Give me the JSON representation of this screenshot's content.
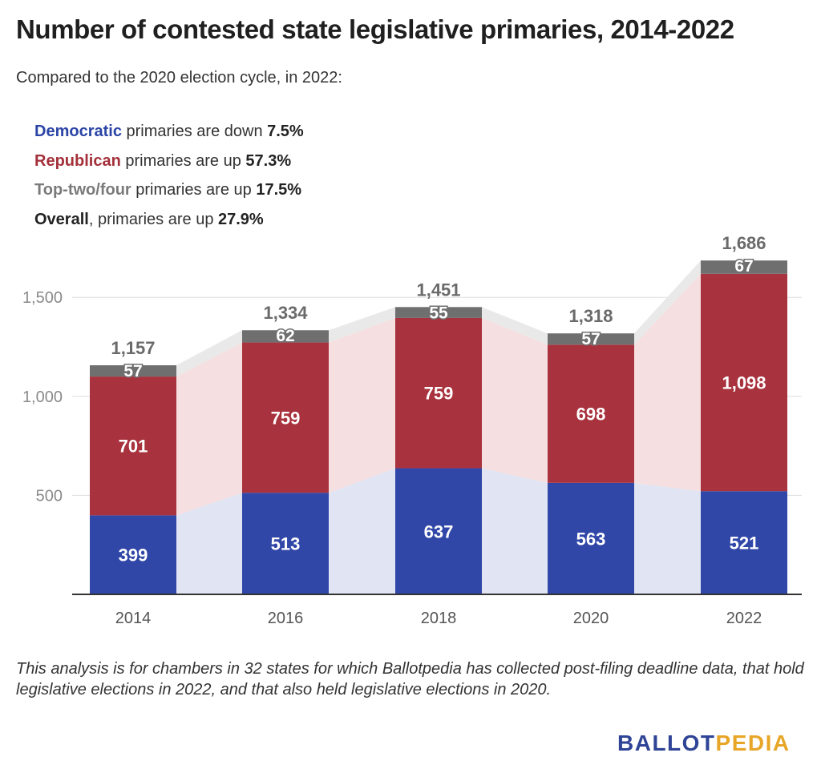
{
  "title": "Number of contested state legislative primaries, 2014-2022",
  "subtitle": "Compared to the 2020 election cycle, in 2022:",
  "summary": [
    {
      "party": "Democratic",
      "text": " primaries are down ",
      "pct": "7.5%",
      "color": "#2b44a6"
    },
    {
      "party": "Republican",
      "text": " primaries are up ",
      "pct": "57.3%",
      "color": "#a3303a"
    },
    {
      "party": "Top-two/four",
      "text": " primaries are up ",
      "pct": "17.5%",
      "color": "#7a7a7a"
    },
    {
      "party": "Overall",
      "text": ", primaries are up ",
      "pct": "27.9%",
      "color": "#222222"
    }
  ],
  "chart_data": {
    "type": "bar",
    "stacked": true,
    "categories": [
      "2014",
      "2016",
      "2018",
      "2020",
      "2022"
    ],
    "series": [
      {
        "name": "Democratic",
        "values": [
          399,
          513,
          637,
          563,
          521
        ],
        "color": "#3047a8"
      },
      {
        "name": "Republican",
        "values": [
          701,
          759,
          759,
          698,
          1098
        ],
        "color": "#a8323d"
      },
      {
        "name": "Top-two/four",
        "values": [
          57,
          62,
          55,
          57,
          67
        ],
        "color": "#6f6f6f"
      }
    ],
    "value_labels": {
      "Democratic": [
        "399",
        "513",
        "637",
        "563",
        "521"
      ],
      "Republican": [
        "701",
        "759",
        "759",
        "698",
        "1,098"
      ],
      "Top-two/four": [
        "57",
        "62",
        "55",
        "57",
        "67"
      ]
    },
    "totals": [
      1157,
      1334,
      1451,
      1318,
      1686
    ],
    "total_labels": [
      "1,157",
      "1,334",
      "1,451",
      "1,318",
      "1,686"
    ],
    "yticks": [
      500,
      1000,
      1500
    ],
    "ytick_labels": [
      "500",
      "1,000",
      "1,500"
    ],
    "ylim": [
      0,
      1780
    ],
    "area_colors": {
      "Democratic": "#e1e4f3",
      "Republican": "#f6dfe0",
      "Top-two/four": "#e9e9e9"
    },
    "grid": true
  },
  "note": "This analysis is for chambers in 32 states for which Ballotpedia has collected post-filing deadline data, that hold legislative elections in 2022, and that also held legislative elections in 2020.",
  "logo": {
    "part1": "BALLOT",
    "part2": "PEDIA",
    "color1": "#2f4496",
    "color2": "#e8a628"
  }
}
